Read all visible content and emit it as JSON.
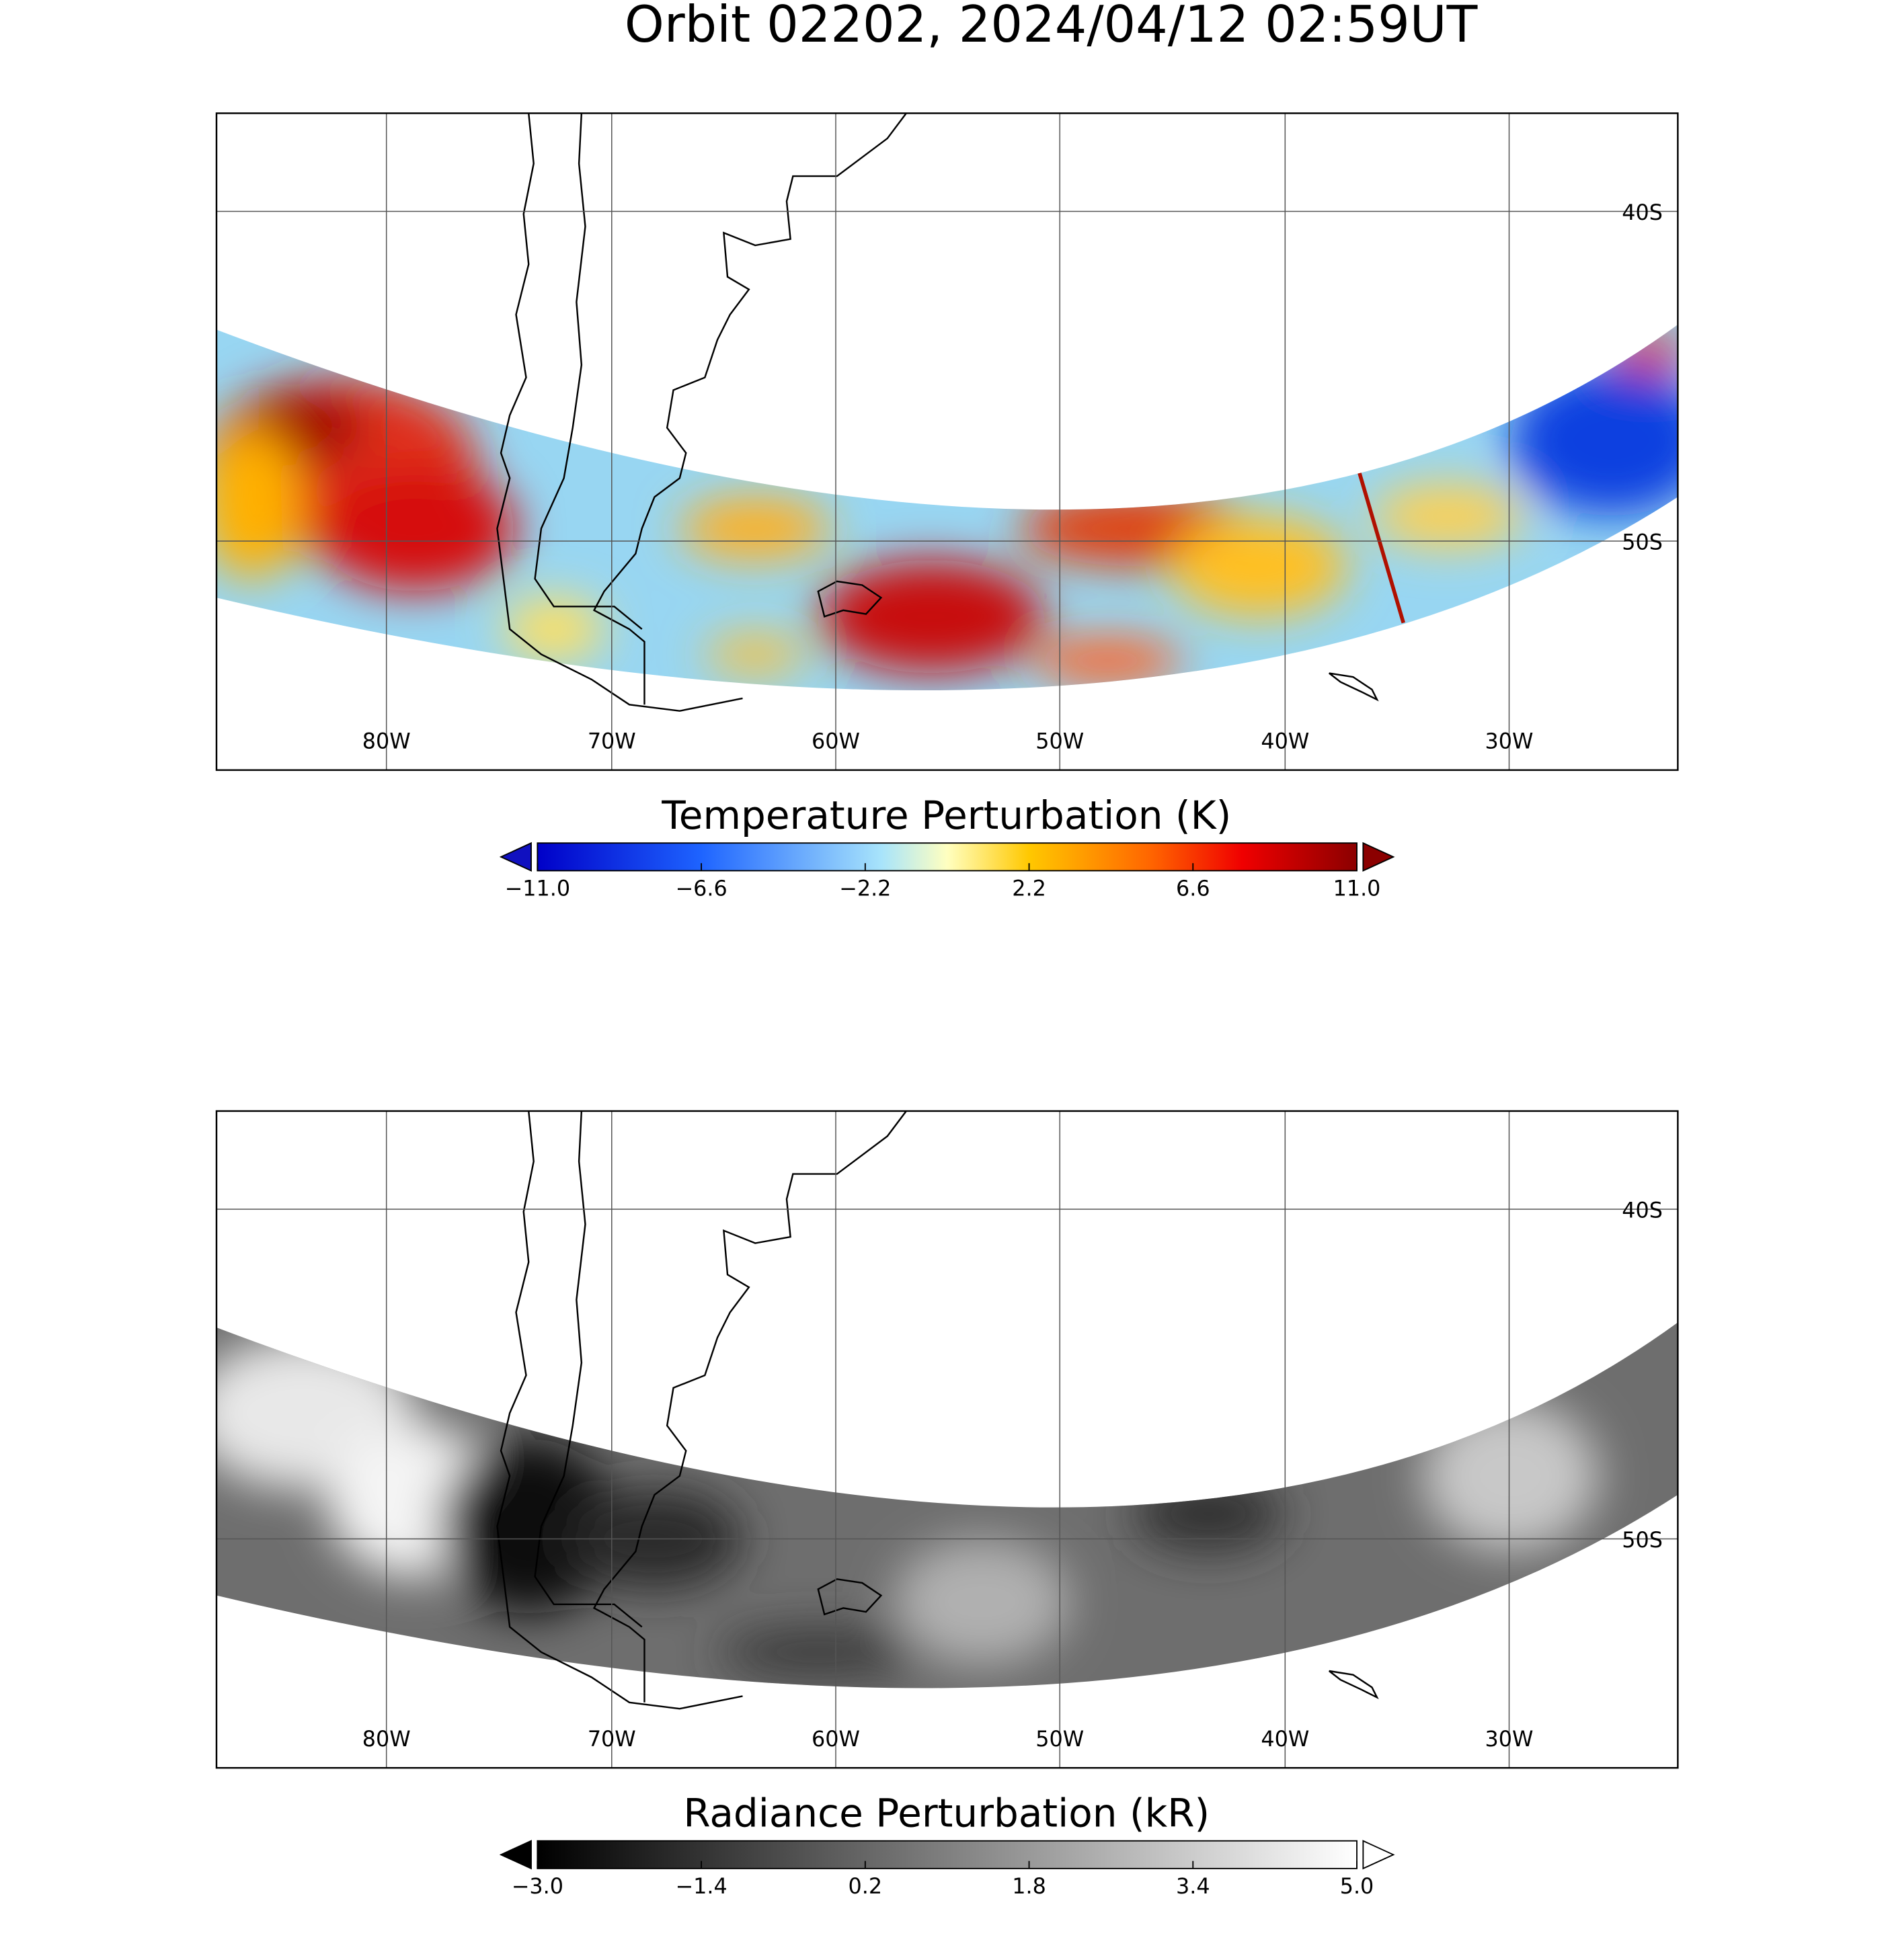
{
  "title": "Orbit 02202, 2024/04/12 02:59UT",
  "panels": [
    {
      "lon_labels": [
        "80W",
        "70W",
        "60W",
        "50W",
        "40W",
        "30W"
      ],
      "lat_labels": [
        "40S",
        "50S"
      ],
      "colorbar": {
        "title": "Temperature Perturbation (K)",
        "tick_labels": [
          "−11.0",
          "−6.6",
          "−2.2",
          "2.2",
          "6.6",
          "11.0"
        ]
      }
    },
    {
      "lon_labels": [
        "80W",
        "70W",
        "60W",
        "50W",
        "40W",
        "30W"
      ],
      "lat_labels": [
        "40S",
        "50S"
      ],
      "colorbar": {
        "title": "Radiance Perturbation (kR)",
        "tick_labels": [
          "−3.0",
          "−1.4",
          "0.2",
          "1.8",
          "3.4",
          "5.0"
        ]
      }
    }
  ]
}
